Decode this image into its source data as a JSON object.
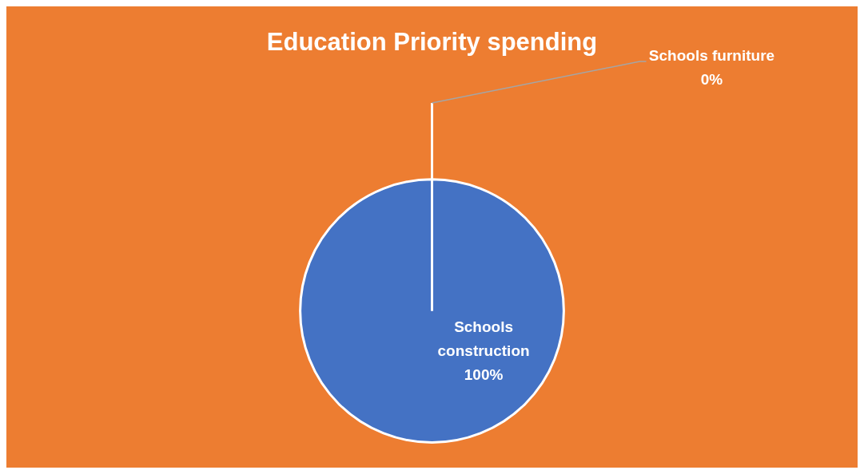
{
  "chart_data": {
    "type": "pie",
    "title": "Education Priority spending",
    "categories": [
      "Schools construction",
      "Schools furniture"
    ],
    "values": [
      100,
      0
    ],
    "colors": [
      "#4472c4",
      "#ed7d31"
    ],
    "value_labels": [
      "100%",
      "0%"
    ],
    "legend": false
  }
}
